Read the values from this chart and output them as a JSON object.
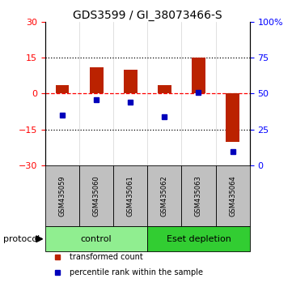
{
  "title": "GDS3599 / GI_38073466-S",
  "samples": [
    "GSM435059",
    "GSM435060",
    "GSM435061",
    "GSM435062",
    "GSM435063",
    "GSM435064"
  ],
  "red_values": [
    3.5,
    11.0,
    10.0,
    3.5,
    15.0,
    -20.0
  ],
  "blue_percentile": [
    35,
    46,
    44,
    34,
    51,
    10
  ],
  "ylim_left": [
    -30,
    30
  ],
  "ylim_right": [
    0,
    100
  ],
  "yticks_left": [
    -30,
    -15,
    0,
    15,
    30
  ],
  "yticks_right": [
    0,
    25,
    50,
    75,
    100
  ],
  "groups": [
    {
      "label": "control",
      "color": "#90EE90",
      "start": 0,
      "end": 3
    },
    {
      "label": "Eset depletion",
      "color": "#32CD32",
      "start": 3,
      "end": 6
    }
  ],
  "protocol_label": "protocol",
  "legend_red": "transformed count",
  "legend_blue": "percentile rank within the sample",
  "bar_color_red": "#BB2200",
  "bar_color_blue": "#0000BB",
  "sample_box_color": "#C0C0C0",
  "bar_width": 0.4
}
